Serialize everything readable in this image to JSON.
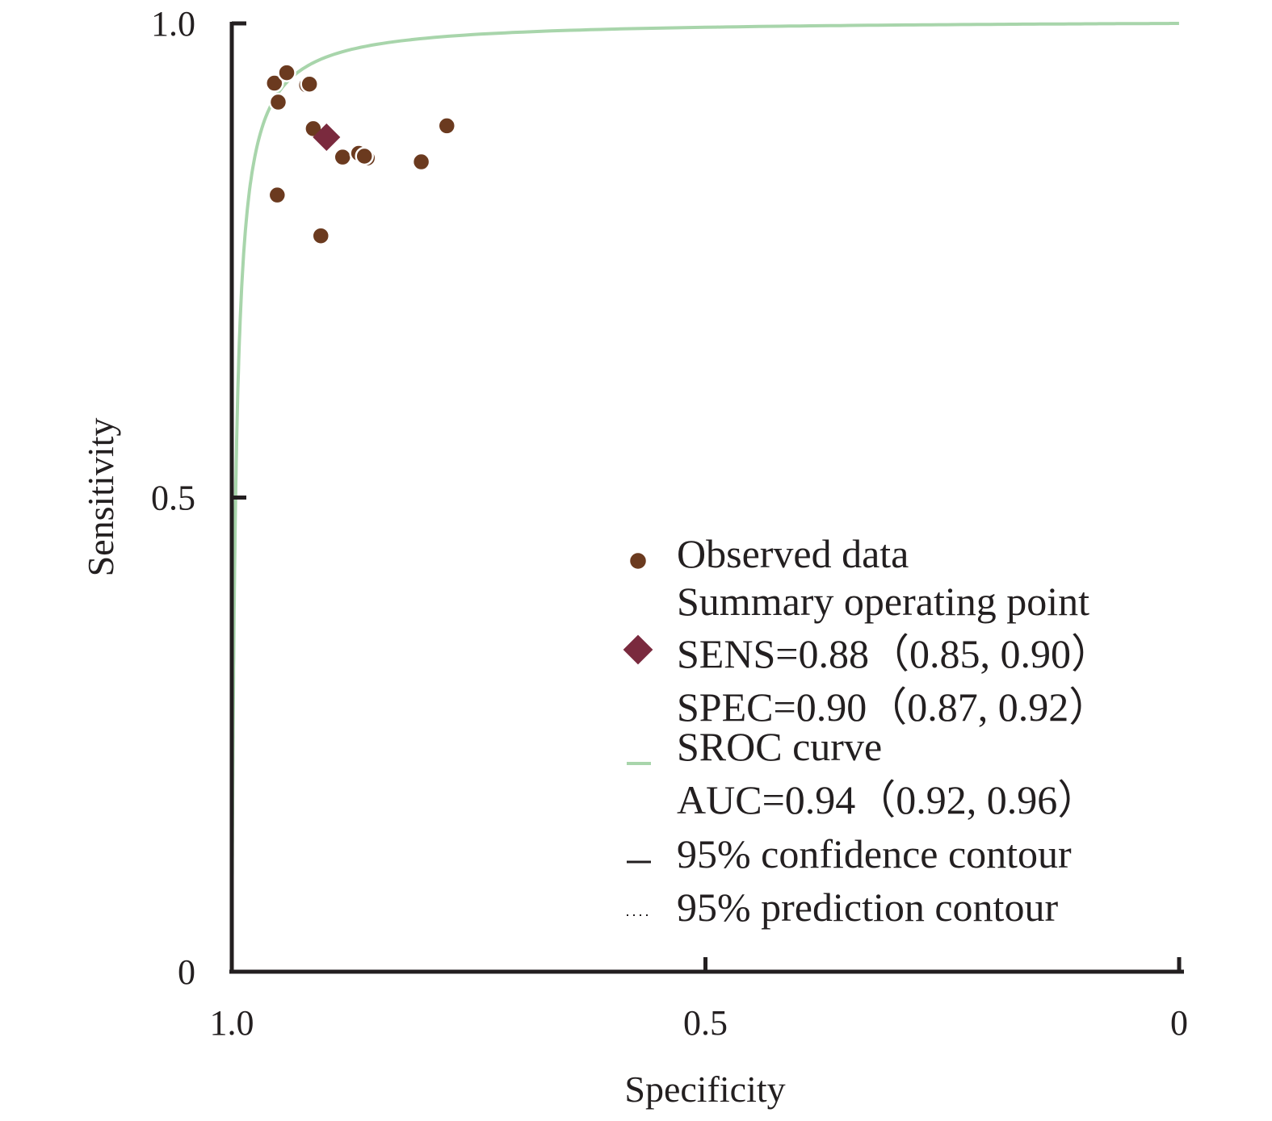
{
  "chart_data": {
    "type": "scatter",
    "xlabel": "Specificity",
    "ylabel": "Sensitivity",
    "xlim": [
      1.0,
      0
    ],
    "ylim": [
      0,
      1.0
    ],
    "x_reversed": true,
    "x_ticks": [
      {
        "value": 1.0,
        "label": "1.0"
      },
      {
        "value": 0.5,
        "label": "0.5"
      },
      {
        "value": 0,
        "label": "0"
      }
    ],
    "y_ticks": [
      {
        "value": 1.0,
        "label": "1.0"
      },
      {
        "value": 0.5,
        "label": "0.5"
      },
      {
        "value": 0,
        "label": "0"
      }
    ],
    "grid": false,
    "legend_position": "bottom-right",
    "series": [
      {
        "name": "Observed data",
        "type": "scatter",
        "color": "#6b3a1f",
        "points": [
          {
            "specificity": 0.955,
            "sensitivity": 0.937
          },
          {
            "specificity": 0.942,
            "sensitivity": 0.948
          },
          {
            "specificity": 0.921,
            "sensitivity": 0.935
          },
          {
            "specificity": 0.918,
            "sensitivity": 0.936
          },
          {
            "specificity": 0.951,
            "sensitivity": 0.917
          },
          {
            "specificity": 0.914,
            "sensitivity": 0.889
          },
          {
            "specificity": 0.883,
            "sensitivity": 0.859
          },
          {
            "specificity": 0.866,
            "sensitivity": 0.863
          },
          {
            "specificity": 0.857,
            "sensitivity": 0.858
          },
          {
            "specificity": 0.86,
            "sensitivity": 0.86
          },
          {
            "specificity": 0.8,
            "sensitivity": 0.854
          },
          {
            "specificity": 0.773,
            "sensitivity": 0.892
          },
          {
            "specificity": 0.952,
            "sensitivity": 0.819
          },
          {
            "specificity": 0.906,
            "sensitivity": 0.776
          }
        ]
      },
      {
        "name": "Summary operating point",
        "type": "point",
        "marker": "diamond",
        "color": "#7a2a3e",
        "specificity": 0.9,
        "sensitivity": 0.88
      },
      {
        "name": "SROC curve",
        "type": "line",
        "color": "#a8d5ab",
        "auc": 0.94
      }
    ]
  },
  "legend": {
    "observed": "Observed data",
    "summary_title": "Summary operating point",
    "sens": "SENS=0.88（0.85, 0.90）",
    "spec": "SPEC=0.90（0.87, 0.92）",
    "sroc": "SROC curve",
    "auc": "AUC=0.94（0.92, 0.96）",
    "confidence": "95% confidence contour",
    "prediction": "95% prediction contour"
  }
}
